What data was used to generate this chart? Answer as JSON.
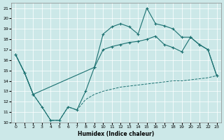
{
  "xlabel": "Humidex (Indice chaleur)",
  "bg_color": "#cce8e8",
  "grid_color": "#b8d8d8",
  "line_color": "#1a7070",
  "xlim": [
    -0.5,
    23.5
  ],
  "ylim": [
    10,
    21.5
  ],
  "xticks": [
    0,
    1,
    2,
    3,
    4,
    5,
    6,
    7,
    8,
    9,
    10,
    11,
    12,
    13,
    14,
    15,
    16,
    17,
    18,
    19,
    20,
    21,
    22,
    23
  ],
  "yticks": [
    10,
    11,
    12,
    13,
    14,
    15,
    16,
    17,
    18,
    19,
    20,
    21
  ],
  "line_top_x": [
    0,
    1,
    2,
    3,
    4,
    5,
    6,
    7,
    8,
    9,
    10,
    11,
    12,
    13,
    14,
    15,
    16,
    17,
    18,
    19,
    20,
    21,
    22,
    23
  ],
  "line_top_y": [
    16.5,
    14.8,
    12.7,
    11.5,
    10.2,
    10.2,
    11.5,
    11.2,
    13.0,
    15.3,
    18.5,
    19.2,
    19.5,
    19.2,
    18.5,
    21.0,
    19.5,
    19.3,
    19.0,
    18.2,
    18.2,
    17.5,
    17.0,
    14.5
  ],
  "line_mid_x": [
    0,
    1,
    2,
    9,
    10,
    11,
    12,
    13,
    14,
    15,
    16,
    17,
    18,
    19,
    20,
    21,
    22,
    23
  ],
  "line_mid_y": [
    16.5,
    14.8,
    12.7,
    15.3,
    17.0,
    17.3,
    17.5,
    17.7,
    17.8,
    18.0,
    18.3,
    17.5,
    17.2,
    16.8,
    18.2,
    17.5,
    17.0,
    14.5
  ],
  "line_bot_x": [
    0,
    1,
    2,
    3,
    4,
    5,
    6,
    7,
    8,
    9,
    10,
    11,
    12,
    13,
    14,
    15,
    16,
    17,
    18,
    19,
    20,
    21,
    22,
    23
  ],
  "line_bot_y": [
    16.5,
    14.8,
    12.7,
    11.5,
    10.2,
    10.2,
    11.5,
    11.2,
    12.2,
    12.7,
    13.0,
    13.2,
    13.4,
    13.5,
    13.6,
    13.7,
    13.8,
    13.9,
    14.0,
    14.0,
    14.1,
    14.2,
    14.3,
    14.5
  ]
}
